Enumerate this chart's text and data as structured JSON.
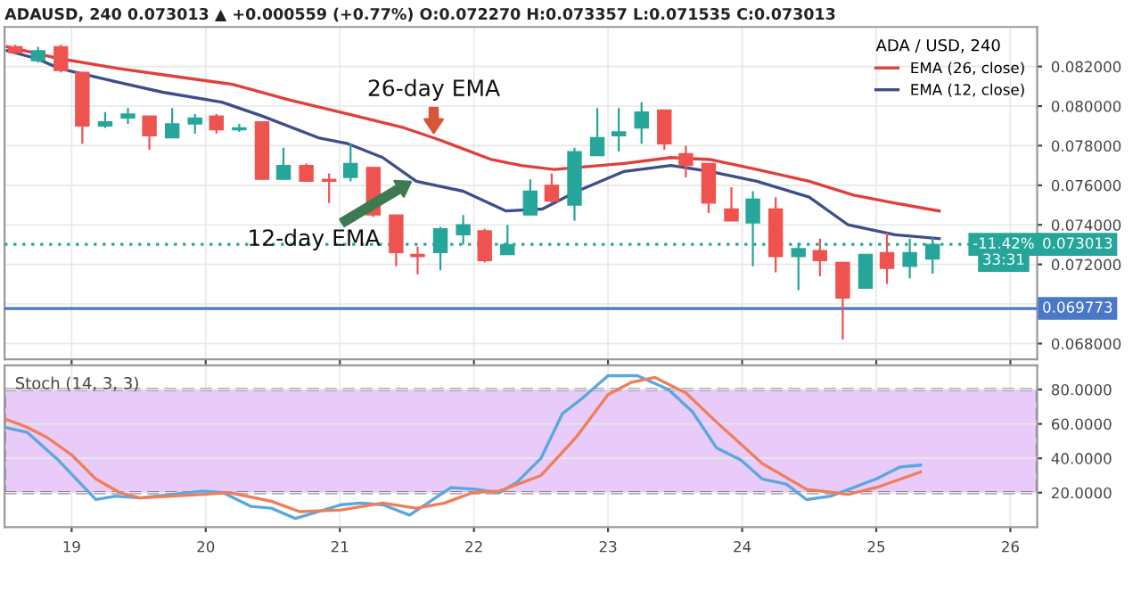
{
  "chart_data": [
    {
      "type": "candlestick",
      "title": "ADAUSD, 240 0.073013 ▲ +0.000559 (+0.77%) O:0.072270 H:0.073357 L:0.071535 C:0.073013",
      "x": [
        18.58,
        18.75,
        18.92,
        19.08,
        19.25,
        19.42,
        19.58,
        19.75,
        19.92,
        20.08,
        20.25,
        20.42,
        20.58,
        20.75,
        20.92,
        21.08,
        21.25,
        21.42,
        21.58,
        21.75,
        21.92,
        22.08,
        22.25,
        22.42,
        22.58,
        22.75,
        22.92,
        23.08,
        23.25,
        23.42,
        23.58,
        23.75,
        23.92,
        24.08,
        24.25,
        24.42,
        24.58,
        24.75,
        24.92,
        25.08,
        25.25,
        25.42
      ],
      "ohlc": [
        [
          0.083,
          0.0831,
          0.0826,
          0.0827
        ],
        [
          0.0823,
          0.083,
          0.0822,
          0.0828
        ],
        [
          0.083,
          0.0831,
          0.0817,
          0.0818
        ],
        [
          0.0817,
          0.0817,
          0.0781,
          0.079
        ],
        [
          0.079,
          0.0797,
          0.0789,
          0.0792
        ],
        [
          0.0794,
          0.0799,
          0.0791,
          0.0796
        ],
        [
          0.0795,
          0.0795,
          0.0778,
          0.0785
        ],
        [
          0.0784,
          0.0799,
          0.0784,
          0.0791
        ],
        [
          0.0791,
          0.0796,
          0.0786,
          0.0794
        ],
        [
          0.0795,
          0.0796,
          0.0786,
          0.0788
        ],
        [
          0.0788,
          0.0791,
          0.0787,
          0.0789
        ],
        [
          0.0792,
          0.0792,
          0.0763,
          0.0763
        ],
        [
          0.0763,
          0.0779,
          0.0763,
          0.077
        ],
        [
          0.077,
          0.0771,
          0.0762,
          0.0762
        ],
        [
          0.0763,
          0.0766,
          0.0751,
          0.0762
        ],
        [
          0.0764,
          0.0781,
          0.0762,
          0.0771
        ],
        [
          0.0769,
          0.0769,
          0.0744,
          0.0745
        ],
        [
          0.0745,
          0.0745,
          0.0719,
          0.0726
        ],
        [
          0.0725,
          0.0729,
          0.0715,
          0.0724
        ],
        [
          0.0726,
          0.0739,
          0.0717,
          0.0738
        ],
        [
          0.0735,
          0.0745,
          0.073,
          0.074
        ],
        [
          0.0737,
          0.0738,
          0.0721,
          0.0722
        ],
        [
          0.0725,
          0.074,
          0.0725,
          0.073
        ],
        [
          0.0745,
          0.0763,
          0.0745,
          0.0757
        ],
        [
          0.076,
          0.0766,
          0.0751,
          0.0752
        ],
        [
          0.075,
          0.0779,
          0.0742,
          0.0777
        ],
        [
          0.0775,
          0.0799,
          0.0775,
          0.0784
        ],
        [
          0.0785,
          0.0799,
          0.0777,
          0.0787
        ],
        [
          0.0789,
          0.0802,
          0.0781,
          0.0797
        ],
        [
          0.0798,
          0.0798,
          0.0778,
          0.0781
        ],
        [
          0.0776,
          0.078,
          0.0764,
          0.077
        ],
        [
          0.0771,
          0.0771,
          0.0746,
          0.0751
        ],
        [
          0.0748,
          0.0759,
          0.0742,
          0.0742
        ],
        [
          0.0741,
          0.0757,
          0.0719,
          0.0753
        ],
        [
          0.0748,
          0.0754,
          0.0716,
          0.0724
        ],
        [
          0.0724,
          0.0731,
          0.0707,
          0.0728
        ],
        [
          0.0727,
          0.0733,
          0.0714,
          0.0722
        ],
        [
          0.0721,
          0.0721,
          0.0682,
          0.0703
        ],
        [
          0.0708,
          0.0725,
          0.0708,
          0.0725
        ],
        [
          0.0726,
          0.0736,
          0.071,
          0.0718
        ],
        [
          0.0719,
          0.0733,
          0.0713,
          0.0726
        ],
        [
          0.07227,
          0.073357,
          0.071535,
          0.073013
        ]
      ],
      "colors": [
        "#ef5350",
        "#26a69a",
        "#ef5350",
        "#ef5350",
        "#26a69a",
        "#26a69a",
        "#ef5350",
        "#26a69a",
        "#26a69a",
        "#ef5350",
        "#26a69a",
        "#ef5350",
        "#26a69a",
        "#ef5350",
        "#ef5350",
        "#26a69a",
        "#ef5350",
        "#ef5350",
        "#ef5350",
        "#26a69a",
        "#26a69a",
        "#ef5350",
        "#26a69a",
        "#26a69a",
        "#ef5350",
        "#26a69a",
        "#26a69a",
        "#26a69a",
        "#26a69a",
        "#ef5350",
        "#ef5350",
        "#ef5350",
        "#ef5350",
        "#26a69a",
        "#ef5350",
        "#26a69a",
        "#ef5350",
        "#ef5350",
        "#26a69a",
        "#ef5350",
        "#26a69a",
        "#26a69a"
      ],
      "series": [
        {
          "name": "EMA (26, close)",
          "type": "line",
          "color": "#e0403c",
          "x": [
            18.52,
            18.91,
            19.35,
            19.77,
            20.2,
            20.63,
            21.06,
            21.48,
            21.74,
            22.13,
            22.35,
            22.6,
            22.77,
            23.12,
            23.47,
            23.76,
            24.11,
            24.5,
            24.83,
            25.14,
            25.47
          ],
          "values": [
            0.083,
            0.0824,
            0.0819,
            0.0815,
            0.0811,
            0.0803,
            0.0796,
            0.0789,
            0.0783,
            0.0773,
            0.077,
            0.0768,
            0.0769,
            0.0771,
            0.0774,
            0.0773,
            0.0768,
            0.0762,
            0.0755,
            0.0751,
            0.0747
          ]
        },
        {
          "name": "EMA (12, close)",
          "type": "line",
          "color": "#3d4e8c",
          "x": [
            18.52,
            18.74,
            18.91,
            19.35,
            19.68,
            20.12,
            20.42,
            20.84,
            21.06,
            21.32,
            21.57,
            21.92,
            22.24,
            22.51,
            22.77,
            23.12,
            23.47,
            23.76,
            24.11,
            24.5,
            24.79,
            25.14,
            25.47
          ],
          "values": [
            0.0828,
            0.0824,
            0.0819,
            0.0812,
            0.0807,
            0.0802,
            0.0795,
            0.0784,
            0.0781,
            0.0774,
            0.0762,
            0.0757,
            0.0747,
            0.0748,
            0.0757,
            0.0767,
            0.077,
            0.0767,
            0.0762,
            0.0754,
            0.074,
            0.0735,
            0.0733
          ]
        }
      ],
      "xlim": [
        18.5,
        26.2
      ],
      "xticks": [
        19,
        20,
        21,
        22,
        23,
        24,
        25,
        26
      ],
      "ylim": [
        0.0672,
        0.084
      ],
      "yticks": [
        {
          "value": 0.068,
          "label": "0.068000"
        },
        {
          "value": 0.07,
          "label": null
        },
        {
          "value": 0.072,
          "label": "0.072000"
        },
        {
          "value": 0.074,
          "label": "0.074000"
        },
        {
          "value": 0.076,
          "label": "0.076000"
        },
        {
          "value": 0.078,
          "label": "0.078000"
        },
        {
          "value": 0.08,
          "label": "0.080000"
        },
        {
          "value": 0.082,
          "label": "0.082000"
        }
      ],
      "tick_labels": "y",
      "grid": true,
      "legend": "top right",
      "legend_title": "ADA / USD, 240",
      "ref_lines": [
        {
          "axis": "y",
          "value": 0.073013,
          "label": "0.073013",
          "color": "#26a69a",
          "line_style": "dotted"
        },
        {
          "axis": "y",
          "value": 0.069773,
          "label": "0.069773",
          "color": "#4a78c8",
          "line_style": "solid"
        }
      ],
      "annotations": [
        {
          "text": "26-day EMA",
          "x": 21.7,
          "y": 0.0784
        },
        {
          "text": "12-day EMA",
          "x": 21.56,
          "y": 0.0763
        },
        {
          "text": "-11.42%",
          "x": 25.95,
          "y": 0.073013
        },
        {
          "text": "33:31",
          "x": 25.95,
          "y": 0.0722
        }
      ]
    },
    {
      "type": "line",
      "title": "Stoch (14, 3, 3)",
      "series": [
        {
          "color": "#5aa7dc",
          "x": [
            18.5,
            18.67,
            18.9,
            19.18,
            19.33,
            19.51,
            19.98,
            20.13,
            20.34,
            20.49,
            20.67,
            21.01,
            21.16,
            21.32,
            21.52,
            21.83,
            22.01,
            22.19,
            22.32,
            22.5,
            22.66,
            22.81,
            23.0,
            23.22,
            23.45,
            23.63,
            23.81,
            23.99,
            24.15,
            24.33,
            24.48,
            24.66,
            25.0,
            25.18,
            25.33
          ],
          "values": [
            58,
            55,
            39,
            16,
            18,
            17,
            21,
            20,
            12,
            11,
            5,
            13,
            14,
            13,
            7,
            23,
            22,
            20,
            26,
            40,
            66,
            75,
            88,
            88,
            80,
            67,
            46,
            39,
            28,
            25,
            16,
            18,
            28,
            35,
            36
          ]
        },
        {
          "color": "#ef7f5a",
          "x": [
            18.5,
            18.67,
            18.82,
            19.0,
            19.18,
            19.36,
            19.51,
            19.98,
            20.18,
            20.49,
            20.7,
            21.01,
            21.32,
            21.57,
            21.78,
            21.99,
            22.19,
            22.5,
            22.76,
            23.0,
            23.17,
            23.35,
            23.58,
            23.81,
            24.15,
            24.48,
            24.79,
            25.0,
            25.33
          ],
          "values": [
            63,
            58,
            52,
            42,
            28,
            20,
            17,
            19,
            20,
            15,
            9,
            10,
            14,
            11,
            14,
            20,
            21,
            30,
            52,
            77,
            84,
            87,
            78,
            61,
            37,
            22,
            19,
            23,
            32
          ]
        }
      ],
      "xlim": [
        18.5,
        26.2
      ],
      "xticks": [
        19,
        20,
        21,
        22,
        23,
        24,
        25,
        26
      ],
      "ylim": [
        0,
        94
      ],
      "yticks": [
        {
          "value": 20,
          "label": "20.0000"
        },
        {
          "value": 40,
          "label": "40.0000"
        },
        {
          "value": 60,
          "label": "60.0000"
        },
        {
          "value": 80,
          "label": "80.0000"
        }
      ],
      "grid": true,
      "bands": [
        {
          "axis": "y",
          "from": 20,
          "to": 80,
          "color": "#e8cbf8"
        }
      ]
    }
  ]
}
